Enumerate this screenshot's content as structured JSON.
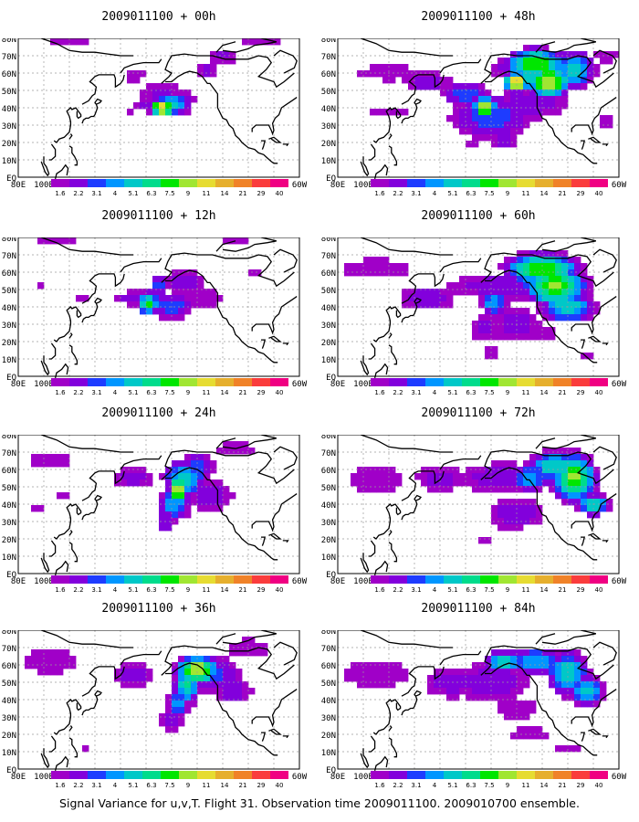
{
  "colors": {
    "background": "#ffffff",
    "frame": "#000000",
    "coast": "#000000",
    "grid": "#9a9a9a",
    "scale": [
      "#a000c8",
      "#8200dc",
      "#1e3cff",
      "#0096ff",
      "#00c8c8",
      "#00dc8c",
      "#00e600",
      "#a0e632",
      "#e6dc32",
      "#e6af2d",
      "#f08228",
      "#fa3c3c",
      "#f00082"
    ]
  },
  "figure": {
    "caption": "Signal Variance for u,v,T. Flight 31. Observation time 2009011100. 2009010700 ensemble.",
    "colorbar_levels": [
      "1.6",
      "2.2",
      "3.1",
      "4",
      "5.1",
      "6.3",
      "7.5",
      "9",
      "11",
      "14",
      "21",
      "29",
      "40"
    ],
    "x_tick_labels": [
      "80E",
      "100E",
      "120E",
      "140E",
      "160E",
      "180",
      "160W",
      "140W",
      "120W",
      "100W",
      "80W",
      "60W"
    ],
    "y_tick_labels": [
      "EQ",
      "10N",
      "20N",
      "30N",
      "40N",
      "50N",
      "60N",
      "70N",
      "80N"
    ]
  },
  "chart_data": [
    {
      "type": "heatmap",
      "title": "2009011100 + 00h",
      "xlim": [
        "80E",
        "60W"
      ],
      "ylim": [
        "EQ",
        "80N"
      ],
      "levels": [
        1.6,
        2.2,
        3.1,
        4,
        5.1,
        6.3,
        7.5,
        9,
        11,
        14,
        21,
        29,
        40
      ],
      "grid": true,
      "blobs": [
        [
          172,
          58,
          20,
          6,
          0.1
        ],
        [
          -178,
          43,
          18,
          9,
          0.15
        ],
        [
          -152,
          46,
          25,
          12,
          0.05
        ],
        [
          168,
          39,
          8,
          5,
          0.1
        ],
        [
          120,
          77,
          45,
          5,
          0.2
        ],
        [
          -90,
          78,
          35,
          4,
          0.1
        ]
      ],
      "peaks": [
        [
          -167,
          40,
          8,
          4,
          11
        ],
        [
          -160,
          42,
          14,
          6,
          5.1
        ],
        [
          -168,
          48,
          20,
          9,
          2.2
        ],
        [
          178,
          42,
          12,
          4,
          2.2
        ],
        [
          -133,
          62,
          10,
          5,
          2.2
        ],
        [
          -120,
          70,
          15,
          6,
          2.2
        ]
      ]
    },
    {
      "type": "heatmap",
      "title": "2009011100 + 48h",
      "xlim": [
        "80E",
        "60W"
      ],
      "ylim": [
        "EQ",
        "80N"
      ],
      "levels": [
        1.6,
        2.2,
        3.1,
        4,
        5.1,
        6.3,
        7.5,
        9,
        11,
        14,
        21,
        29,
        40
      ],
      "grid": true,
      "blobs": [
        [
          120,
          60,
          55,
          10,
          0.3
        ],
        [
          120,
          38,
          40,
          6,
          0.1
        ],
        [
          -70,
          70,
          20,
          10,
          0.1
        ],
        [
          -175,
          20,
          10,
          4,
          0.05
        ],
        [
          -70,
          32,
          15,
          8,
          0.05
        ]
      ],
      "peaks": [
        [
          -118,
          63,
          40,
          10,
          4
        ],
        [
          -140,
          55,
          8,
          5,
          11
        ],
        [
          -165,
          40,
          8,
          6,
          9
        ],
        [
          -160,
          35,
          35,
          14,
          3.1
        ],
        [
          -115,
          55,
          15,
          8,
          9
        ],
        [
          -125,
          65,
          20,
          8,
          7.5
        ],
        [
          -180,
          48,
          20,
          8,
          3.1
        ],
        [
          -130,
          42,
          40,
          12,
          2.2
        ],
        [
          150,
          55,
          25,
          8,
          2.2
        ],
        [
          -150,
          22,
          12,
          8,
          2.2
        ],
        [
          -95,
          62,
          14,
          10,
          5.1
        ]
      ]
    },
    {
      "type": "heatmap",
      "title": "2009011100 + 12h",
      "xlim": [
        "80E",
        "60W"
      ],
      "ylim": [
        "EQ",
        "80N"
      ],
      "levels": [
        1.6,
        2.2,
        3.1,
        4,
        5.1,
        6.3,
        7.5,
        9,
        11,
        14,
        21,
        29,
        40
      ],
      "grid": true,
      "blobs": [
        [
          110,
          78,
          40,
          6,
          0.3
        ],
        [
          -110,
          78,
          30,
          5,
          0.2
        ],
        [
          96,
          53,
          6,
          3,
          0.05
        ],
        [
          -95,
          60,
          12,
          6,
          0.1
        ],
        [
          132,
          45,
          12,
          6,
          0.05
        ]
      ],
      "peaks": [
        [
          -178,
          42,
          8,
          6,
          6.3
        ],
        [
          -170,
          52,
          6,
          7,
          3.1
        ],
        [
          170,
          45,
          18,
          6,
          2.2
        ],
        [
          -160,
          40,
          18,
          8,
          3.1
        ],
        [
          -150,
          55,
          20,
          10,
          2.2
        ],
        [
          -135,
          45,
          30,
          12,
          1.6
        ]
      ]
    },
    {
      "type": "heatmap",
      "title": "2009011100 + 60h",
      "xlim": [
        "80E",
        "60W"
      ],
      "ylim": [
        "EQ",
        "80N"
      ],
      "levels": [
        1.6,
        2.2,
        3.1,
        4,
        5.1,
        6.3,
        7.5,
        9,
        11,
        14,
        21,
        29,
        40
      ],
      "grid": true,
      "blobs": [
        [
          110,
          62,
          60,
          14,
          0.5
        ],
        [
          -120,
          25,
          30,
          8,
          0.05
        ],
        [
          -85,
          12,
          10,
          4,
          0.05
        ]
      ],
      "peaks": [
        [
          -150,
          52,
          60,
          10,
          2.2
        ],
        [
          -110,
          52,
          22,
          10,
          7.5
        ],
        [
          -120,
          62,
          25,
          8,
          7.5
        ],
        [
          -135,
          60,
          10,
          5,
          4
        ],
        [
          -158,
          42,
          10,
          8,
          4
        ],
        [
          -140,
          30,
          25,
          14,
          2.2
        ],
        [
          -100,
          40,
          20,
          8,
          5.1
        ],
        [
          -165,
          28,
          15,
          10,
          2.2
        ],
        [
          150,
          45,
          30,
          10,
          2.2
        ],
        [
          -160,
          15,
          10,
          8,
          1.6
        ]
      ]
    },
    {
      "type": "heatmap",
      "title": "2009011100 + 24h",
      "xlim": [
        "80E",
        "60W"
      ],
      "ylim": [
        "EQ",
        "80N"
      ],
      "levels": [
        1.6,
        2.2,
        3.1,
        4,
        5.1,
        6.3,
        7.5,
        9,
        11,
        14,
        21,
        29,
        40
      ],
      "grid": true,
      "blobs": [
        [
          105,
          65,
          40,
          12,
          0.5
        ],
        [
          -110,
          72,
          35,
          10,
          0.2
        ],
        [
          115,
          45,
          10,
          5,
          0.05
        ],
        [
          95,
          38,
          10,
          5,
          0.05
        ]
      ],
      "peaks": [
        [
          -155,
          48,
          6,
          8,
          9
        ],
        [
          -150,
          55,
          15,
          10,
          5.1
        ],
        [
          -158,
          40,
          12,
          10,
          4
        ],
        [
          -165,
          30,
          10,
          10,
          2.2
        ],
        [
          170,
          55,
          20,
          8,
          2.2
        ],
        [
          -140,
          62,
          15,
          8,
          3.1
        ],
        [
          -130,
          45,
          25,
          12,
          2.2
        ]
      ]
    },
    {
      "type": "heatmap",
      "title": "2009011100 + 72h",
      "xlim": [
        "80E",
        "60W"
      ],
      "ylim": [
        "EQ",
        "80N"
      ],
      "levels": [
        1.6,
        2.2,
        3.1,
        4,
        5.1,
        6.3,
        7.5,
        9,
        11,
        14,
        21,
        29,
        40
      ],
      "grid": true,
      "blobs": [
        [
          110,
          55,
          50,
          20,
          0.7
        ],
        [
          -150,
          30,
          30,
          10,
          0.1
        ],
        [
          -165,
          18,
          8,
          5,
          0.05
        ]
      ],
      "peaks": [
        [
          -95,
          55,
          15,
          12,
          7.5
        ],
        [
          -110,
          62,
          20,
          8,
          5.1
        ],
        [
          -150,
          55,
          50,
          12,
          2.2
        ],
        [
          -80,
          40,
          12,
          6,
          5.1
        ],
        [
          -130,
          55,
          15,
          8,
          4
        ],
        [
          160,
          55,
          25,
          10,
          2.2
        ],
        [
          -140,
          35,
          30,
          12,
          2.2
        ]
      ]
    },
    {
      "type": "heatmap",
      "title": "2009011100 + 36h",
      "xlim": [
        "80E",
        "60W"
      ],
      "ylim": [
        "EQ",
        "80N"
      ],
      "levels": [
        1.6,
        2.2,
        3.1,
        4,
        5.1,
        6.3,
        7.5,
        9,
        11,
        14,
        21,
        29,
        40
      ],
      "grid": true,
      "blobs": [
        [
          105,
          62,
          50,
          16,
          0.6
        ],
        [
          -100,
          70,
          40,
          12,
          0.3
        ],
        [
          132,
          12,
          5,
          4,
          0.05
        ]
      ],
      "peaks": [
        [
          -140,
          57,
          14,
          7,
          9
        ],
        [
          -148,
          48,
          10,
          10,
          5.1
        ],
        [
          -155,
          38,
          8,
          8,
          4
        ],
        [
          -130,
          55,
          25,
          12,
          3.1
        ],
        [
          -160,
          28,
          12,
          10,
          2.2
        ],
        [
          170,
          55,
          20,
          10,
          2.2
        ],
        [
          -112,
          45,
          20,
          10,
          2.2
        ]
      ]
    },
    {
      "type": "heatmap",
      "title": "2009011100 + 84h",
      "xlim": [
        "80E",
        "60W"
      ],
      "ylim": [
        "EQ",
        "80N"
      ],
      "levels": [
        1.6,
        2.2,
        3.1,
        4,
        5.1,
        6.3,
        7.5,
        9,
        11,
        14,
        21,
        29,
        40
      ],
      "grid": true,
      "blobs": [
        [
          110,
          55,
          60,
          20,
          0.9
        ],
        [
          -130,
          20,
          40,
          10,
          0.3
        ],
        [
          -100,
          12,
          30,
          8,
          0.3
        ]
      ],
      "peaks": [
        [
          -150,
          62,
          15,
          6,
          5.1
        ],
        [
          -100,
          55,
          15,
          12,
          5.1
        ],
        [
          -85,
          45,
          12,
          8,
          5.1
        ],
        [
          -125,
          62,
          20,
          8,
          4
        ],
        [
          -160,
          50,
          40,
          15,
          2.2
        ],
        [
          170,
          50,
          30,
          12,
          2.2
        ],
        [
          -140,
          35,
          30,
          12,
          1.6
        ]
      ]
    }
  ]
}
